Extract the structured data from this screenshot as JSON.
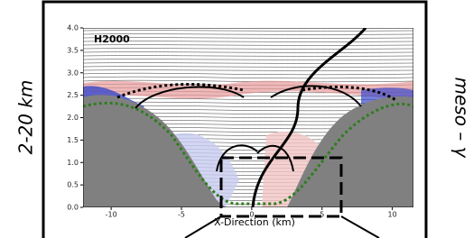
{
  "chart_data": {
    "type": "contour",
    "title": "H2000",
    "x_label": "X-Direction (km)",
    "xlim": [
      -12,
      11.5
    ],
    "ylim": [
      0,
      4
    ],
    "xticks": [
      -10,
      -5,
      0,
      5,
      10
    ],
    "yticks": [
      {
        "value": 0,
        "label": "0.0"
      },
      {
        "value": 0.5,
        "label": "0.5"
      },
      {
        "value": 1,
        "label": "1.0"
      },
      {
        "value": 1.5,
        "label": "1.5"
      },
      {
        "value": 2,
        "label": "2.0"
      },
      {
        "value": 2.5,
        "label": "2.5"
      },
      {
        "value": 3,
        "label": "3.0"
      },
      {
        "value": 3.5,
        "label": "3.5"
      },
      {
        "value": 4,
        "label": "4.0"
      }
    ],
    "annotations": [
      "2-20 km",
      "meso – γ"
    ]
  }
}
